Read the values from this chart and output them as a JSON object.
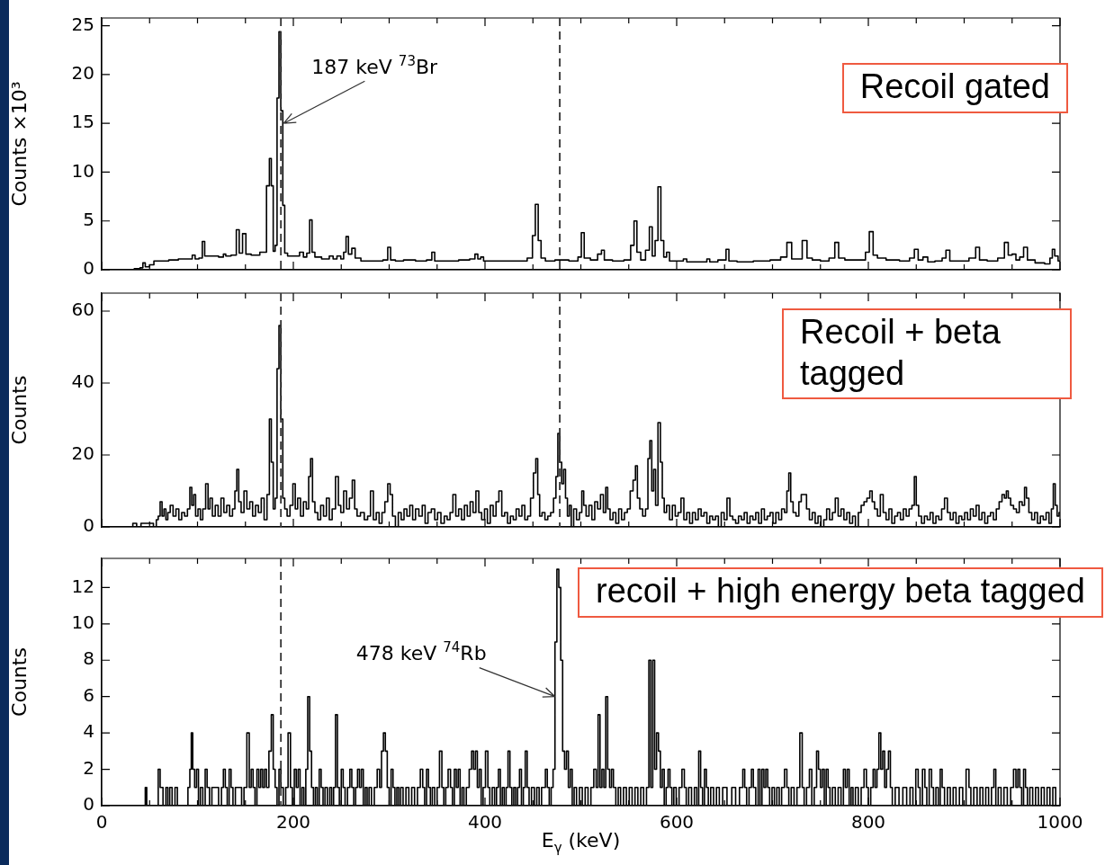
{
  "chart_data": [
    {
      "type": "step",
      "ylabel": "Counts ×10³",
      "xlim": [
        0,
        1000
      ],
      "ylim": [
        0,
        25.8
      ],
      "yticks": [
        0,
        5,
        10,
        15,
        20,
        25
      ],
      "tick_labels": "y",
      "color": "#000000",
      "xticks": [
        0,
        {
          "value": 50,
          "label": null
        },
        {
          "value": 100,
          "label": null
        },
        {
          "value": 150,
          "label": null
        },
        200,
        {
          "value": 250,
          "label": null
        },
        {
          "value": 300,
          "label": null
        },
        {
          "value": 350,
          "label": null
        },
        400,
        {
          "value": 450,
          "label": null
        },
        {
          "value": 500,
          "label": null
        },
        {
          "value": 550,
          "label": null
        },
        600,
        {
          "value": 650,
          "label": null
        },
        {
          "value": 700,
          "label": null
        },
        {
          "value": 750,
          "label": null
        },
        800,
        {
          "value": 850,
          "label": null
        },
        {
          "value": 900,
          "label": null
        },
        {
          "value": 950,
          "label": null
        },
        1000
      ],
      "ref_lines": [
        {
          "axis": "x",
          "value": 187,
          "color": "#333333",
          "line_style": "dashed"
        },
        {
          "axis": "x",
          "value": 478,
          "color": "#333333",
          "line_style": "dashed"
        }
      ],
      "annotations": [
        {
          "text": "187 keV $^{73}$Br",
          "x": 190,
          "y": 15
        },
        "Recoil gated"
      ],
      "x": [
        0,
        30,
        38,
        42,
        44,
        47,
        53,
        56,
        65,
        75,
        85,
        93,
        96,
        99,
        104,
        106,
        109,
        118,
        126,
        128,
        131,
        139,
        142,
        145,
        149,
        152,
        160,
        170,
        174,
        176,
        178,
        180,
        182,
        184,
        186,
        188,
        190,
        192,
        196,
        204,
        209,
        212,
        216,
        218,
        221,
        224,
        235,
        240,
        243,
        248,
        251,
        254,
        256,
        259,
        263,
        266,
        275,
        290,
        297,
        300,
        303,
        310,
        320,
        335,
        343,
        346,
        349,
        365,
        380,
        388,
        391,
        394,
        397,
        400,
        420,
        440,
        448,
        451,
        454,
        457,
        460,
        466,
        480,
        495,
        499,
        502,
        505,
        515,
        520,
        523,
        526,
        540,
        550,
        554,
        557,
        560,
        565,
        570,
        573,
        576,
        579,
        582,
        585,
        588,
        591,
        594,
        605,
        609,
        612,
        630,
        633,
        636,
        650,
        653,
        656,
        670,
        690,
        705,
        712,
        718,
        722,
        728,
        734,
        738,
        745,
        755,
        763,
        767,
        771,
        780,
        795,
        799,
        803,
        807,
        812,
        825,
        840,
        846,
        850,
        854,
        860,
        864,
        875,
        879,
        883,
        887,
        900,
        910,
        914,
        918,
        930,
        940,
        944,
        948,
        952,
        956,
        960,
        964,
        968,
        980,
        988,
        991,
        993,
        996,
        1000
      ],
      "values": [
        0,
        0,
        0.1,
        0.2,
        0.7,
        0.3,
        0.5,
        0.9,
        0.9,
        1.0,
        1.1,
        1.1,
        1.5,
        1.1,
        1.2,
        2.9,
        1.4,
        1.4,
        1.3,
        1.6,
        1.4,
        1.5,
        4.1,
        1.7,
        3.7,
        1.6,
        1.5,
        1.8,
        8.6,
        11.4,
        8.6,
        1.9,
        2.5,
        17.6,
        24.4,
        16.3,
        6.6,
        1.7,
        1.4,
        1.4,
        1.8,
        1.3,
        1.7,
        5.1,
        1.8,
        1.3,
        1.1,
        1.4,
        1.1,
        1.4,
        1.1,
        1.8,
        3.4,
        1.6,
        2.2,
        1.2,
        0.9,
        0.9,
        1.0,
        2.3,
        1.0,
        0.9,
        1.0,
        0.9,
        1.0,
        1.8,
        0.9,
        0.9,
        1.0,
        1.1,
        1.6,
        1.1,
        1.3,
        0.9,
        0.9,
        0.9,
        1.2,
        3.5,
        6.7,
        3.0,
        1.2,
        0.9,
        1.0,
        0.9,
        1.3,
        3.8,
        1.2,
        1.0,
        1.6,
        2.0,
        1.0,
        0.9,
        1.0,
        2.5,
        5.0,
        1.8,
        1.0,
        2.0,
        4.4,
        1.4,
        3.0,
        8.5,
        3.0,
        1.3,
        1.8,
        0.9,
        0.9,
        1.1,
        0.8,
        0.8,
        1.1,
        0.8,
        1.0,
        2.1,
        0.9,
        0.8,
        0.9,
        1.0,
        1.3,
        2.8,
        1.1,
        1.1,
        3.0,
        1.2,
        1.0,
        0.9,
        1.2,
        2.8,
        1.2,
        1.0,
        1.0,
        1.8,
        3.9,
        1.5,
        1.2,
        1.0,
        0.9,
        1.2,
        2.1,
        1.0,
        1.3,
        0.8,
        0.9,
        1.2,
        2.0,
        0.9,
        0.9,
        1.2,
        2.3,
        1.0,
        0.9,
        1.2,
        2.8,
        1.5,
        1.6,
        1.0,
        1.3,
        2.3,
        1.0,
        0.7,
        0.6,
        1.2,
        2.1,
        1.4,
        0.9
      ]
    },
    {
      "type": "step",
      "ylabel": "Counts",
      "xlim": [
        0,
        1000
      ],
      "ylim": [
        0,
        65
      ],
      "yticks": [
        0,
        20,
        40,
        60
      ],
      "tick_labels": "y",
      "color": "#000000",
      "xticks": [
        0,
        {
          "value": 50,
          "label": null
        },
        {
          "value": 100,
          "label": null
        },
        {
          "value": 150,
          "label": null
        },
        200,
        {
          "value": 250,
          "label": null
        },
        {
          "value": 300,
          "label": null
        },
        {
          "value": 350,
          "label": null
        },
        400,
        {
          "value": 450,
          "label": null
        },
        {
          "value": 500,
          "label": null
        },
        {
          "value": 550,
          "label": null
        },
        600,
        {
          "value": 650,
          "label": null
        },
        {
          "value": 700,
          "label": null
        },
        {
          "value": 750,
          "label": null
        },
        800,
        {
          "value": 850,
          "label": null
        },
        {
          "value": 900,
          "label": null
        },
        {
          "value": 950,
          "label": null
        },
        1000
      ],
      "ref_lines": [
        {
          "axis": "x",
          "value": 187,
          "color": "#333333",
          "line_style": "dashed"
        },
        {
          "axis": "x",
          "value": 478,
          "color": "#333333",
          "line_style": "dashed"
        }
      ],
      "annotations": [
        "Recoil + beta tagged"
      ],
      "x": [
        0,
        30,
        35,
        38,
        44,
        52,
        56,
        58,
        60,
        62,
        64,
        66,
        68,
        70,
        73,
        76,
        79,
        82,
        85,
        88,
        91,
        93,
        95,
        97,
        99,
        102,
        104,
        107,
        110,
        112,
        114,
        117,
        120,
        123,
        126,
        129,
        132,
        135,
        138,
        140,
        142,
        144,
        147,
        150,
        153,
        156,
        159,
        162,
        165,
        168,
        171,
        174,
        176,
        178,
        180,
        182,
        184,
        186,
        188,
        190,
        192,
        195,
        198,
        201,
        203,
        206,
        209,
        212,
        215,
        217,
        219,
        221,
        224,
        227,
        230,
        233,
        236,
        239,
        242,
        246,
        248,
        251,
        254,
        257,
        260,
        263,
        265,
        268,
        272,
        276,
        279,
        282,
        285,
        288,
        291,
        294,
        297,
        300,
        302,
        305,
        308,
        311,
        314,
        317,
        320,
        323,
        326,
        329,
        333,
        336,
        339,
        342,
        346,
        349,
        352,
        356,
        359,
        362,
        365,
        368,
        371,
        374,
        377,
        380,
        383,
        386,
        389,
        392,
        395,
        398,
        401,
        404,
        407,
        410,
        413,
        416,
        419,
        422,
        425,
        428,
        431,
        434,
        437,
        440,
        443,
        446,
        449,
        452,
        454,
        456,
        458,
        461,
        464,
        467,
        470,
        473,
        475,
        477,
        479,
        481,
        483,
        485,
        487,
        489,
        491,
        494,
        497,
        500,
        502,
        504,
        507,
        510,
        513,
        516,
        519,
        522,
        525,
        527,
        529,
        532,
        535,
        538,
        541,
        544,
        547,
        550,
        553,
        556,
        558,
        560,
        563,
        566,
        569,
        571,
        573,
        575,
        577,
        579,
        582,
        584,
        586,
        588,
        591,
        594,
        597,
        600,
        603,
        606,
        609,
        612,
        615,
        618,
        621,
        624,
        627,
        630,
        633,
        636,
        639,
        642,
        645,
        648,
        651,
        654,
        657,
        660,
        663,
        666,
        669,
        672,
        675,
        678,
        681,
        684,
        687,
        690,
        693,
        696,
        699,
        702,
        705,
        708,
        711,
        714,
        716,
        718,
        720,
        723,
        726,
        729,
        731,
        734,
        737,
        740,
        743,
        746,
        749,
        752,
        755,
        758,
        761,
        764,
        767,
        770,
        773,
        776,
        779,
        782,
        785,
        788,
        791,
        794,
        797,
        800,
        803,
        805,
        808,
        811,
        814,
        817,
        820,
        823,
        826,
        829,
        832,
        835,
        838,
        841,
        844,
        847,
        849,
        851,
        854,
        857,
        860,
        863,
        866,
        869,
        872,
        875,
        878,
        881,
        884,
        887,
        890,
        893,
        896,
        899,
        902,
        905,
        908,
        911,
        914,
        917,
        920,
        923,
        926,
        929,
        932,
        935,
        938,
        941,
        943,
        945,
        947,
        950,
        953,
        956,
        959,
        962,
        964,
        966,
        969,
        972,
        975,
        978,
        981,
        984,
        987,
        990,
        992,
        994,
        996,
        998,
        1000
      ],
      "values": [
        0,
        0,
        1,
        0,
        1,
        1,
        0,
        2,
        3,
        7,
        3,
        5,
        2,
        4,
        6,
        3,
        5,
        2,
        4,
        3,
        5,
        11,
        6,
        9,
        3,
        5,
        2,
        5,
        12,
        5,
        8,
        3,
        6,
        3,
        8,
        4,
        6,
        3,
        5,
        10,
        16,
        7,
        4,
        10,
        5,
        7,
        3,
        6,
        4,
        8,
        2,
        9,
        30,
        18,
        5,
        8,
        44,
        56,
        30,
        8,
        5,
        3,
        6,
        12,
        5,
        8,
        3,
        7,
        5,
        14,
        19,
        7,
        4,
        2,
        6,
        3,
        8,
        2,
        5,
        14,
        6,
        4,
        10,
        5,
        8,
        13,
        5,
        3,
        4,
        2,
        3,
        10,
        2,
        4,
        1,
        4,
        7,
        12,
        9,
        3,
        0,
        4,
        2,
        5,
        3,
        6,
        2,
        5,
        3,
        6,
        1,
        4,
        5,
        2,
        4,
        1,
        3,
        2,
        4,
        9,
        3,
        5,
        2,
        6,
        3,
        7,
        4,
        10,
        4,
        2,
        5,
        1,
        6,
        3,
        7,
        10,
        3,
        4,
        1,
        3,
        2,
        5,
        3,
        6,
        2,
        3,
        8,
        15,
        19,
        9,
        3,
        4,
        2,
        3,
        4,
        8,
        14,
        26,
        18,
        12,
        16,
        8,
        3,
        6,
        0,
        5,
        2,
        4,
        10,
        6,
        3,
        6,
        2,
        7,
        5,
        9,
        4,
        11,
        5,
        2,
        4,
        1,
        5,
        2,
        4,
        5,
        10,
        13,
        17,
        8,
        5,
        3,
        5,
        19,
        24,
        10,
        16,
        6,
        29,
        18,
        8,
        4,
        6,
        2,
        6,
        3,
        4,
        8,
        2,
        4,
        1,
        4,
        2,
        5,
        3,
        4,
        1,
        3,
        2,
        3,
        0,
        4,
        2,
        8,
        3,
        2,
        1,
        3,
        2,
        4,
        1,
        3,
        2,
        4,
        1,
        5,
        2,
        3,
        4,
        1,
        4,
        2,
        5,
        4,
        10,
        15,
        7,
        4,
        3,
        7,
        9,
        9,
        5,
        2,
        4,
        1,
        3,
        0,
        2,
        5,
        2,
        4,
        8,
        3,
        5,
        2,
        4,
        1,
        3,
        0,
        4,
        6,
        7,
        8,
        10,
        7,
        5,
        3,
        9,
        4,
        2,
        5,
        1,
        3,
        4,
        2,
        5,
        3,
        5,
        6,
        14,
        6,
        3,
        1,
        3,
        2,
        4,
        1,
        3,
        2,
        5,
        8,
        4,
        2,
        4,
        1,
        3,
        2,
        4,
        2,
        5,
        3,
        6,
        2,
        4,
        1,
        3,
        4,
        2,
        5,
        7,
        9,
        8,
        10,
        8,
        6,
        5,
        4,
        7,
        6,
        11,
        8,
        4,
        2,
        4,
        1,
        3,
        2,
        4,
        1,
        5,
        12,
        6,
        3,
        4
      ]
    },
    {
      "type": "step",
      "ylabel": "Counts",
      "xlabel": "E$_{γ}$ (keV)",
      "xlim": [
        0,
        1000
      ],
      "ylim": [
        0,
        13.6
      ],
      "yticks": [
        0,
        2,
        4,
        6,
        8,
        10,
        12
      ],
      "color": "#000000",
      "xticks": [
        0,
        {
          "value": 50,
          "label": null
        },
        {
          "value": 100,
          "label": null
        },
        {
          "value": 150,
          "label": null
        },
        200,
        {
          "value": 250,
          "label": null
        },
        {
          "value": 300,
          "label": null
        },
        {
          "value": 350,
          "label": null
        },
        400,
        {
          "value": 450,
          "label": null
        },
        {
          "value": 500,
          "label": null
        },
        {
          "value": 550,
          "label": null
        },
        600,
        {
          "value": 650,
          "label": null
        },
        {
          "value": 700,
          "label": null
        },
        {
          "value": 750,
          "label": null
        },
        800,
        {
          "value": 850,
          "label": null
        },
        {
          "value": 900,
          "label": null
        },
        {
          "value": 950,
          "label": null
        },
        1000
      ],
      "ref_lines": [
        {
          "axis": "x",
          "value": 187,
          "color": "#333333",
          "line_style": "dashed"
        }
      ],
      "annotations": [
        {
          "text": "478 keV $^{74}$Rb",
          "x": 473,
          "y": 6
        },
        "recoil + high energy beta tagged"
      ],
      "x": [
        0,
        45,
        46,
        48,
        58,
        60,
        62,
        66,
        68,
        70,
        72,
        75,
        78,
        80,
        89,
        91,
        93,
        94,
        96,
        98,
        100,
        102,
        104,
        107,
        109,
        111,
        114,
        116,
        120,
        124,
        126,
        128,
        130,
        132,
        134,
        136,
        138,
        141,
        145,
        147,
        150,
        153,
        155,
        157,
        159,
        161,
        163,
        165,
        167,
        169,
        171,
        173,
        176,
        178,
        180,
        182,
        184,
        186,
        188,
        191,
        193,
        196,
        198,
        200,
        202,
        204,
        206,
        208,
        210,
        212,
        214,
        216,
        218,
        220,
        222,
        224,
        226,
        228,
        230,
        232,
        234,
        237,
        239,
        241,
        243,
        245,
        247,
        249,
        251,
        253,
        255,
        258,
        260,
        262,
        264,
        266,
        268,
        270,
        272,
        274,
        276,
        278,
        280,
        283,
        286,
        289,
        291,
        293,
        295,
        297,
        299,
        301,
        303,
        305,
        307,
        309,
        311,
        313,
        316,
        319,
        322,
        325,
        328,
        331,
        334,
        336,
        338,
        340,
        342,
        344,
        346,
        349,
        351,
        354,
        356,
        358,
        360,
        363,
        365,
        367,
        369,
        371,
        373,
        375,
        377,
        379,
        382,
        385,
        387,
        389,
        391,
        393,
        395,
        397,
        399,
        402,
        404,
        406,
        409,
        411,
        413,
        415,
        417,
        419,
        421,
        423,
        425,
        427,
        429,
        431,
        433,
        435,
        437,
        439,
        441,
        443,
        445,
        447,
        450,
        453,
        455,
        458,
        460,
        462,
        464,
        466,
        468,
        470,
        472,
        474,
        476,
        478,
        480,
        482,
        484,
        486,
        488,
        490,
        492,
        494,
        497,
        500,
        503,
        506,
        509,
        512,
        515,
        517,
        519,
        521,
        523,
        525,
        527,
        529,
        531,
        533,
        535,
        538,
        540,
        543,
        546,
        549,
        552,
        555,
        558,
        561,
        564,
        567,
        570,
        572,
        574,
        576,
        578,
        580,
        582,
        584,
        586,
        588,
        590,
        592,
        594,
        596,
        598,
        601,
        604,
        607,
        609,
        611,
        614,
        617,
        620,
        622,
        624,
        626,
        628,
        630,
        632,
        634,
        637,
        640,
        643,
        646,
        650,
        655,
        660,
        663,
        668,
        670,
        672,
        674,
        677,
        679,
        681,
        684,
        686,
        688,
        690,
        692,
        694,
        696,
        698,
        701,
        703,
        706,
        708,
        711,
        714,
        716,
        718,
        721,
        724,
        727,
        730,
        732,
        734,
        737,
        740,
        742,
        745,
        747,
        749,
        751,
        753,
        755,
        757,
        759,
        761,
        764,
        767,
        770,
        773,
        775,
        777,
        779,
        781,
        783,
        785,
        788,
        791,
        794,
        797,
        799,
        801,
        804,
        806,
        808,
        810,
        812,
        814,
        816,
        818,
        820,
        822,
        824,
        826,
        830,
        834,
        838,
        842,
        845,
        848,
        851,
        853,
        855,
        858,
        860,
        862,
        865,
        867,
        869,
        872,
        874,
        876,
        878,
        881,
        884,
        887,
        890,
        893,
        897,
        900,
        904,
        906,
        908,
        912,
        915,
        918,
        921,
        924,
        927,
        930,
        932,
        934,
        937,
        940,
        943,
        947,
        950,
        953,
        955,
        957,
        959,
        961,
        963,
        965,
        967,
        970,
        973,
        976,
        979,
        982,
        985,
        988,
        991,
        994,
        997,
        1000
      ],
      "values": [
        0,
        0,
        1,
        0,
        0,
        2,
        1,
        0,
        1,
        0,
        1,
        0,
        1,
        0,
        0,
        1,
        2,
        4,
        2,
        1,
        2,
        0,
        1,
        0,
        2,
        1,
        0,
        1,
        1,
        0,
        1,
        2,
        1,
        0,
        2,
        1,
        0,
        1,
        1,
        0,
        1,
        4,
        1,
        2,
        1,
        0,
        2,
        1,
        2,
        1,
        2,
        1,
        3,
        5,
        2,
        1,
        0,
        2,
        1,
        0,
        1,
        4,
        1,
        0,
        2,
        1,
        2,
        0,
        1,
        0,
        2,
        6,
        3,
        1,
        0,
        1,
        0,
        2,
        1,
        0,
        1,
        0,
        1,
        0,
        1,
        5,
        1,
        0,
        2,
        1,
        0,
        1,
        2,
        1,
        0,
        1,
        2,
        1,
        2,
        0,
        1,
        0,
        1,
        0,
        1,
        2,
        1,
        3,
        4,
        3,
        1,
        0,
        2,
        1,
        0,
        1,
        0,
        1,
        0,
        1,
        0,
        1,
        0,
        1,
        2,
        1,
        0,
        2,
        1,
        0,
        1,
        0,
        1,
        3,
        1,
        0,
        1,
        2,
        1,
        0,
        2,
        1,
        2,
        0,
        1,
        0,
        1,
        2,
        3,
        2,
        3,
        1,
        2,
        0,
        1,
        3,
        1,
        0,
        1,
        0,
        1,
        2,
        0,
        1,
        0,
        1,
        3,
        1,
        0,
        1,
        0,
        1,
        2,
        0,
        1,
        3,
        1,
        0,
        1,
        0,
        1,
        0,
        1,
        1,
        2,
        1,
        0,
        1,
        2,
        9,
        13,
        12,
        8,
        3,
        2,
        3,
        1,
        2,
        0,
        1,
        0,
        1,
        0,
        1,
        0,
        1,
        2,
        1,
        5,
        1,
        2,
        1,
        6,
        2,
        1,
        2,
        1,
        0,
        1,
        0,
        1,
        0,
        1,
        0,
        1,
        0,
        1,
        0,
        1,
        8,
        1,
        8,
        2,
        4,
        3,
        1,
        2,
        0,
        1,
        2,
        1,
        0,
        1,
        0,
        1,
        2,
        1,
        0,
        1,
        0,
        1,
        0,
        3,
        1,
        0,
        2,
        1,
        0,
        1,
        0,
        1,
        0,
        1,
        0,
        1,
        0,
        1,
        2,
        1,
        0,
        1,
        2,
        1,
        0,
        2,
        0,
        2,
        1,
        2,
        1,
        0,
        1,
        0,
        1,
        0,
        1,
        2,
        1,
        0,
        1,
        0,
        1,
        4,
        1,
        0,
        1,
        2,
        0,
        1,
        3,
        2,
        1,
        2,
        0,
        2,
        1,
        0,
        1,
        0,
        1,
        0,
        2,
        1,
        2,
        0,
        1,
        0,
        1,
        0,
        1,
        2,
        1,
        0,
        1,
        2,
        1,
        2,
        4,
        2,
        3,
        1,
        2,
        3,
        1,
        0,
        1,
        0,
        1,
        0,
        1,
        0,
        2,
        1,
        0,
        2,
        1,
        0,
        2,
        1,
        0,
        1,
        0,
        2,
        1,
        0,
        1,
        0,
        1,
        0,
        1,
        0,
        2,
        1,
        0,
        1,
        0,
        1,
        0,
        1,
        0,
        1,
        2,
        0,
        1,
        0,
        1,
        0,
        1,
        2,
        1,
        2,
        1,
        0,
        2,
        1,
        0,
        1,
        0,
        1,
        0,
        1,
        0,
        1,
        0,
        1,
        0,
        0
      ]
    }
  ]
}
